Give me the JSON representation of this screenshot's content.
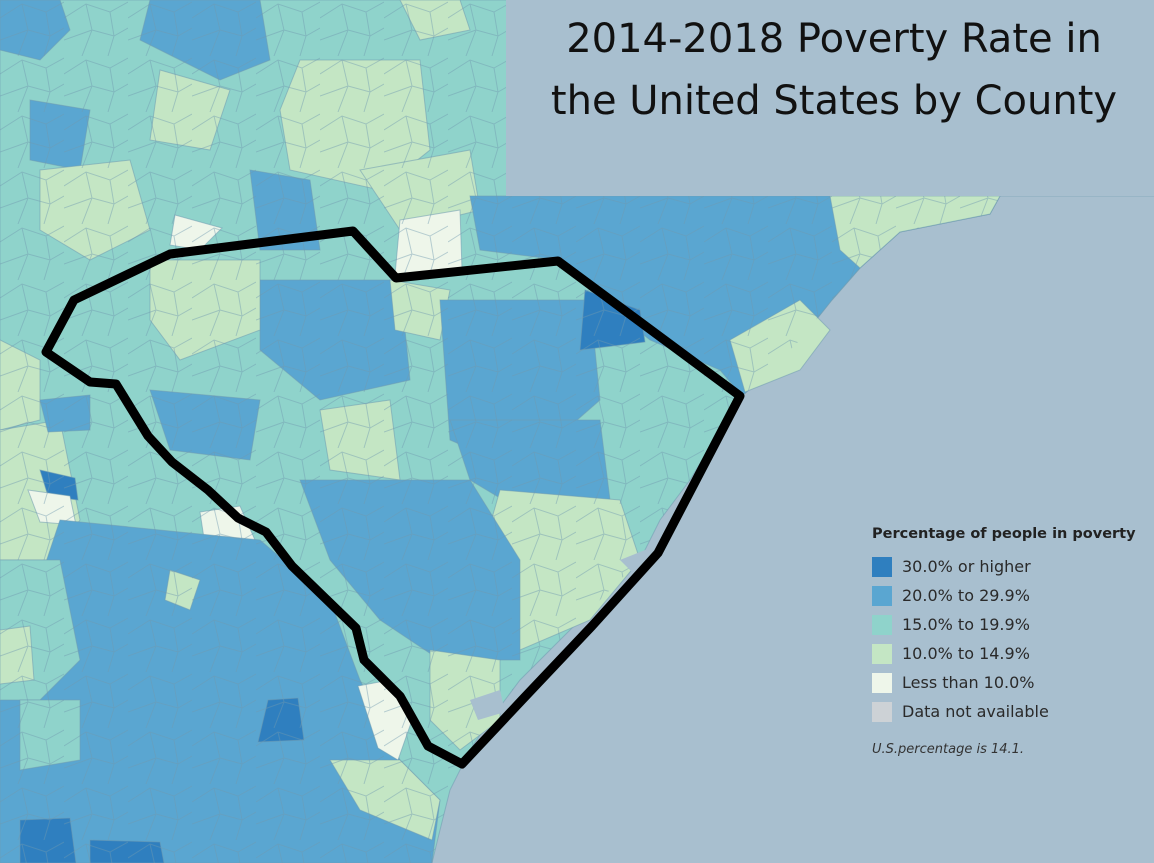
{
  "title": {
    "line1": "2014-2018 Poverty Rate in",
    "line2": "the United States by County"
  },
  "legend": {
    "title": "Percentage of people in poverty",
    "items": [
      {
        "label": "30.0% or higher",
        "color": "#2f7fbf"
      },
      {
        "label": "20.0% to 29.9%",
        "color": "#5aa6d1"
      },
      {
        "label": "15.0% to 19.9%",
        "color": "#8fd3cb"
      },
      {
        "label": "10.0% to 14.9%",
        "color": "#c4e6c4"
      },
      {
        "label": "Less than 10.0%",
        "color": "#eef6ea"
      },
      {
        "label": "Data not available",
        "color": "#cdd2d6"
      }
    ],
    "note": "U.S.percentage is 14.1."
  },
  "colors": {
    "water": "#a8bfcf",
    "outline": "#000000"
  }
}
